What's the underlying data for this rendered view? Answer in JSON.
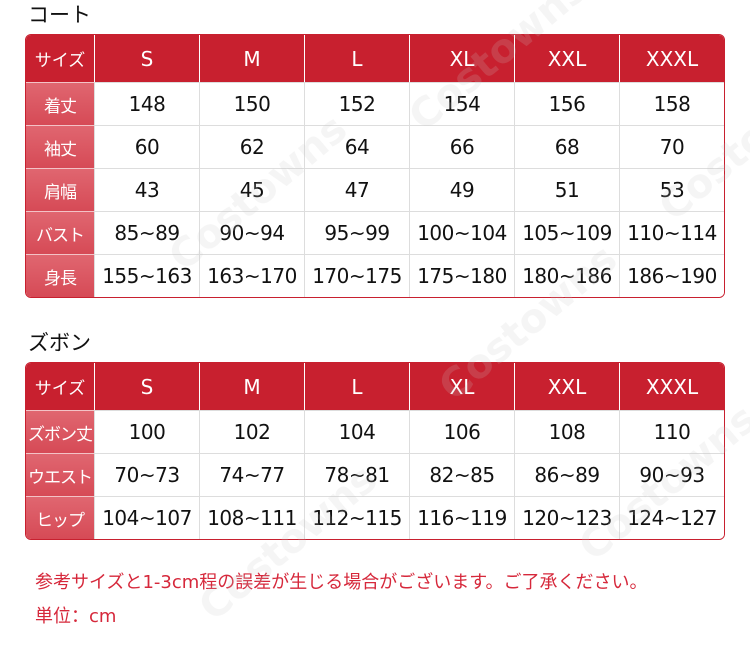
{
  "watermark": "Costowns",
  "sections": [
    {
      "title": "コート",
      "table": {
        "header": [
          "サイズ",
          "S",
          "M",
          "L",
          "XL",
          "XXL",
          "XXXL"
        ],
        "rows": [
          [
            "着丈",
            "148",
            "150",
            "152",
            "154",
            "156",
            "158"
          ],
          [
            "袖丈",
            "60",
            "62",
            "64",
            "66",
            "68",
            "70"
          ],
          [
            "肩幅",
            "43",
            "45",
            "47",
            "49",
            "51",
            "53"
          ],
          [
            "バスト",
            "85~89",
            "90~94",
            "95~99",
            "100~104",
            "105~109",
            "110~114"
          ],
          [
            "身長",
            "155~163",
            "163~170",
            "170~175",
            "175~180",
            "180~186",
            "186~190"
          ]
        ]
      }
    },
    {
      "title": "ズボン",
      "table": {
        "header": [
          "サイズ",
          "S",
          "M",
          "L",
          "XL",
          "XXL",
          "XXXL"
        ],
        "rows": [
          [
            "ズボン丈",
            "100",
            "102",
            "104",
            "106",
            "108",
            "110"
          ],
          [
            "ウエスト",
            "70~73",
            "74~77",
            "78~81",
            "82~85",
            "86~89",
            "90~93"
          ],
          [
            "ヒップ",
            "104~107",
            "108~111",
            "112~115",
            "116~119",
            "120~123",
            "124~127"
          ]
        ]
      }
    }
  ],
  "notes": [
    "参考サイズと1-3cm程の誤差が生じる場合がございます。ご了承ください。",
    "単位：cm"
  ]
}
